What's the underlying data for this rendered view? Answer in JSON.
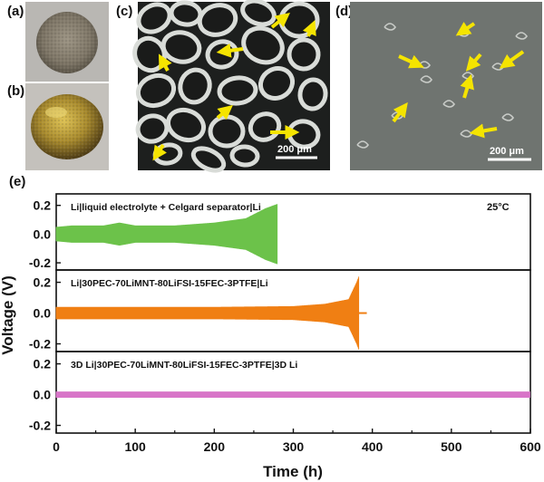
{
  "panels": {
    "a": "(a)",
    "b": "(b)",
    "c": "(c)",
    "d": "(d)",
    "e": "(e)"
  },
  "micrographs": {
    "c_scale_bar": "200 μm",
    "d_scale_bar": "200 μm"
  },
  "colors": {
    "green": "#6cc24a",
    "orange": "#f07f13",
    "pink": "#d874c8",
    "arrow": "#f5e400",
    "sem_bg": "#6f7470",
    "foam_struts": "#d9dcd8"
  },
  "chart_data": {
    "type": "line",
    "xlabel": "Time (h)",
    "ylabel": "Voltage (V)",
    "x_ticks": [
      0,
      100,
      200,
      300,
      400,
      500,
      600
    ],
    "xlim": [
      0,
      600
    ],
    "ylim": [
      -0.25,
      0.28
    ],
    "y_ticks": [
      "-0.2",
      "0.0",
      "0.2"
    ],
    "temperature": "25°C",
    "series": [
      {
        "label": "Li|liquid electrolyte + Celgard separator|Li",
        "color": "#6cc24a",
        "end_time_h": 280,
        "amplitude_profile": {
          "time_h": [
            0,
            20,
            60,
            80,
            100,
            150,
            200,
            240,
            265,
            280
          ],
          "voltage_amplitude_V": [
            0.05,
            0.06,
            0.06,
            0.08,
            0.06,
            0.06,
            0.08,
            0.11,
            0.18,
            0.21
          ]
        }
      },
      {
        "label": "Li|30PEC-70LiMNT-80LiFSI-15FEC-3PTFE|Li",
        "color": "#f07f13",
        "end_time_h": 383,
        "amplitude_profile": {
          "time_h": [
            0,
            100,
            200,
            300,
            340,
            370,
            380,
            383
          ],
          "voltage_amplitude_V": [
            0.04,
            0.04,
            0.04,
            0.045,
            0.06,
            0.09,
            0.2,
            0.24
          ]
        }
      },
      {
        "label": "3D Li|30PEC-70LiMNT-80LiFSI-15FEC-3PTFE|3D Li",
        "color": "#d874c8",
        "end_time_h": 600,
        "amplitude_profile": {
          "time_h": [
            0,
            300,
            600
          ],
          "voltage_amplitude_V": [
            0.02,
            0.02,
            0.02
          ]
        }
      }
    ]
  }
}
